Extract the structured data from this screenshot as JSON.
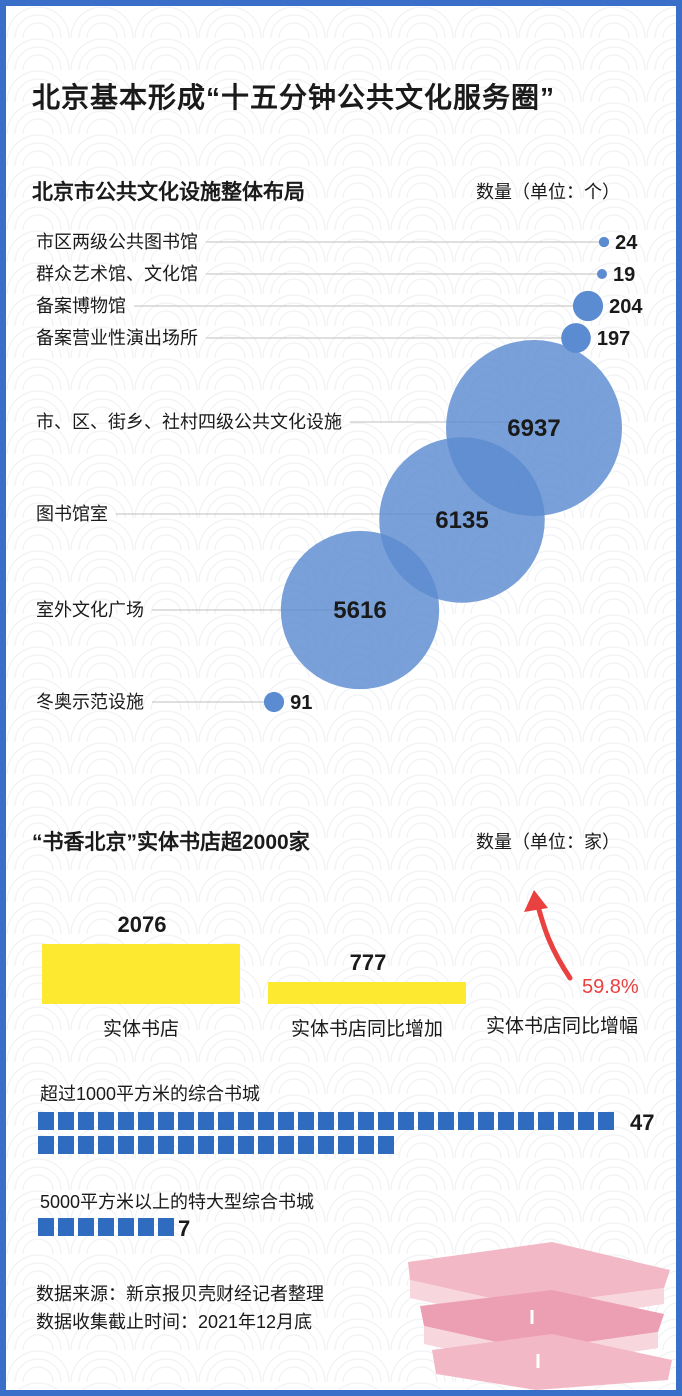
{
  "title": "北京基本形成“十五分钟公共文化服务圈”",
  "section1": {
    "title": "北京市公共文化设施整体布局",
    "unit": "数量（单位：个）"
  },
  "section2": {
    "title": "“书香北京”实体书店超2000家",
    "unit": "数量（单位：家）",
    "growth_label": "实体书店同比增幅",
    "growth_value": "59.8%"
  },
  "squares1": {
    "title": "超过1000平方米的综合书城",
    "value": 47,
    "label": "47"
  },
  "squares2": {
    "title": "5000平方米以上的特大型综合书城",
    "value": 7,
    "label": "7"
  },
  "source": {
    "line1": "数据来源：新京报贝壳财经记者整理",
    "line2": "数据收集截止时间：2021年12月底"
  },
  "colors": {
    "bubble": "#5b8bd0",
    "bar": "#fce930",
    "square": "#2f6bbf",
    "arrow": "#e8413f",
    "frame": "#3a6fc9",
    "books": "#f2b8c6"
  },
  "chart_data": [
    {
      "type": "scatter",
      "title": "北京市公共文化设施整体布局",
      "ylabel": "数量（单位：个）",
      "categories": [
        "市区两级公共图书馆",
        "群众艺术馆、文化馆",
        "备案博物馆",
        "备案营业性演出场所",
        "市、区、街乡、社村四级公共文化设施",
        "图书馆室",
        "室外文化广场",
        "冬奥示范设施"
      ],
      "values": [
        24,
        19,
        204,
        197,
        6937,
        6135,
        5616,
        91
      ],
      "labels": [
        "24",
        "19",
        "204",
        "197",
        "6937",
        "6135",
        "5616",
        "91"
      ]
    },
    {
      "type": "bar",
      "title": "“书香北京”实体书店超2000家",
      "ylabel": "数量（单位：家）",
      "categories": [
        "实体书店",
        "实体书店同比增加"
      ],
      "values": [
        2076,
        777
      ],
      "labels": [
        "2076",
        "777"
      ]
    }
  ]
}
